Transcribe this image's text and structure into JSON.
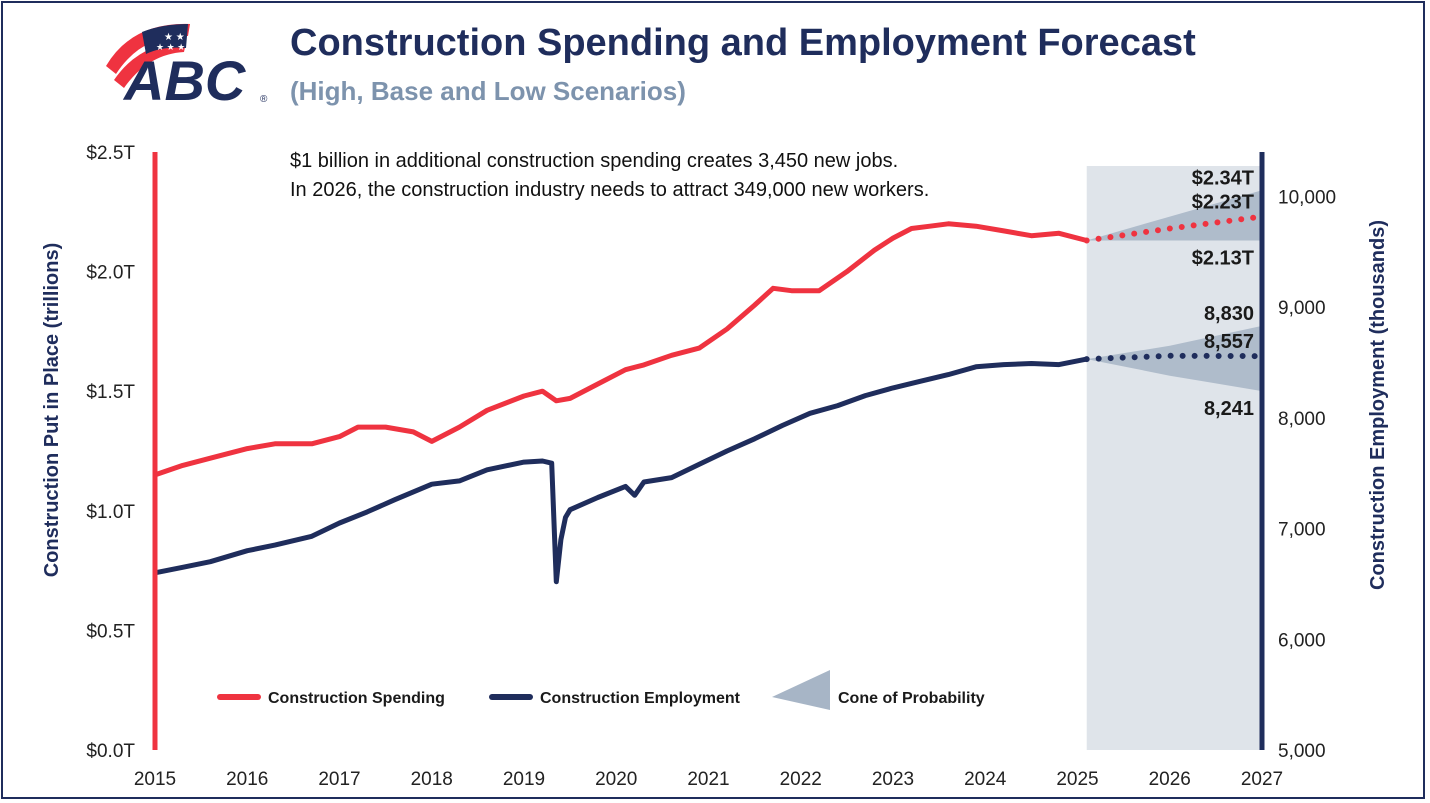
{
  "header": {
    "title": "Construction Spending and Employment Forecast",
    "subtitle": "(High, Base and Low Scenarios)",
    "logo_text": "ABC",
    "logo_mark": "®"
  },
  "notes": [
    "$1 billion in additional construction spending creates 3,450 new jobs.",
    "In 2026, the construction industry needs to attract 349,000 new workers."
  ],
  "colors": {
    "spending": "#ef3340",
    "employment": "#1f2d5c",
    "cone": "#a7b5c6",
    "forecast_bg": "#dfe4ea"
  },
  "chart_data": {
    "type": "line",
    "x_ticks": [
      "2015",
      "2016",
      "2017",
      "2018",
      "2019",
      "2020",
      "2021",
      "2022",
      "2023",
      "2024",
      "2025",
      "2026",
      "2027"
    ],
    "xlim": [
      2015,
      2027
    ],
    "forecast_start": 2025.1,
    "y_left": {
      "label": "Construction Put in Place (trillions)",
      "ticks": [
        "$0.0T",
        "$0.5T",
        "$1.0T",
        "$1.5T",
        "$2.0T",
        "$2.5T"
      ],
      "lim": [
        0,
        2.5
      ]
    },
    "y_right": {
      "label": "Construction Employment (thousands)",
      "ticks": [
        "5,000",
        "6,000",
        "7,000",
        "8,000",
        "9,000",
        "10,000"
      ],
      "lim": [
        5000,
        10400
      ]
    },
    "series": [
      {
        "name": "Construction Spending",
        "axis": "left",
        "x": [
          2015.0,
          2015.3,
          2015.6,
          2016.0,
          2016.3,
          2016.7,
          2017.0,
          2017.2,
          2017.5,
          2017.8,
          2018.0,
          2018.3,
          2018.6,
          2019.0,
          2019.2,
          2019.35,
          2019.5,
          2019.8,
          2020.1,
          2020.3,
          2020.6,
          2020.9,
          2021.2,
          2021.5,
          2021.7,
          2021.9,
          2022.2,
          2022.5,
          2022.8,
          2023.0,
          2023.2,
          2023.4,
          2023.6,
          2023.9,
          2024.2,
          2024.5,
          2024.8,
          2025.1
        ],
        "values": [
          1.15,
          1.19,
          1.22,
          1.26,
          1.28,
          1.28,
          1.31,
          1.35,
          1.35,
          1.33,
          1.29,
          1.35,
          1.42,
          1.48,
          1.5,
          1.46,
          1.47,
          1.53,
          1.59,
          1.61,
          1.65,
          1.68,
          1.76,
          1.86,
          1.93,
          1.92,
          1.92,
          2.0,
          2.09,
          2.14,
          2.18,
          2.19,
          2.2,
          2.19,
          2.17,
          2.15,
          2.16,
          2.13
        ]
      },
      {
        "name": "Construction Employment",
        "axis": "right",
        "x": [
          2015.0,
          2015.3,
          2015.6,
          2016.0,
          2016.3,
          2016.7,
          2017.0,
          2017.3,
          2017.6,
          2018.0,
          2018.3,
          2018.6,
          2019.0,
          2019.2,
          2019.3,
          2019.35,
          2019.4,
          2019.45,
          2019.5,
          2019.8,
          2020.1,
          2020.2,
          2020.3,
          2020.6,
          2020.9,
          2021.2,
          2021.5,
          2021.8,
          2022.1,
          2022.4,
          2022.7,
          2023.0,
          2023.3,
          2023.6,
          2023.9,
          2024.2,
          2024.5,
          2024.8,
          2025.1
        ],
        "values": [
          6600,
          6650,
          6700,
          6800,
          6850,
          6930,
          7050,
          7150,
          7260,
          7400,
          7430,
          7530,
          7600,
          7610,
          7590,
          6520,
          6900,
          7100,
          7170,
          7280,
          7380,
          7300,
          7420,
          7460,
          7580,
          7700,
          7810,
          7930,
          8040,
          8110,
          8200,
          8270,
          8330,
          8390,
          8460,
          8480,
          8490,
          8480,
          8530
        ]
      }
    ],
    "forecasts": [
      {
        "series": "Construction Spending",
        "axis": "left",
        "x": [
          2025.1,
          2026.0,
          2027.0
        ],
        "base": [
          2.13,
          2.18,
          2.23
        ],
        "high": [
          2.13,
          2.23,
          2.34
        ],
        "low": [
          2.13,
          2.13,
          2.13
        ],
        "labels": {
          "high": "$2.34T",
          "base": "$2.23T",
          "low": "$2.13T"
        }
      },
      {
        "series": "Construction Employment",
        "axis": "right",
        "x": [
          2025.1,
          2026.0,
          2027.0
        ],
        "base": [
          8530,
          8560,
          8557
        ],
        "high": [
          8530,
          8650,
          8830
        ],
        "low": [
          8530,
          8380,
          8241
        ],
        "labels": {
          "high": "8,830",
          "base": "8,557",
          "low": "8,241"
        }
      }
    ],
    "legend": {
      "placement": "bottom-left",
      "items": [
        "Construction Spending",
        "Construction Employment",
        "Cone of Probability"
      ]
    }
  }
}
